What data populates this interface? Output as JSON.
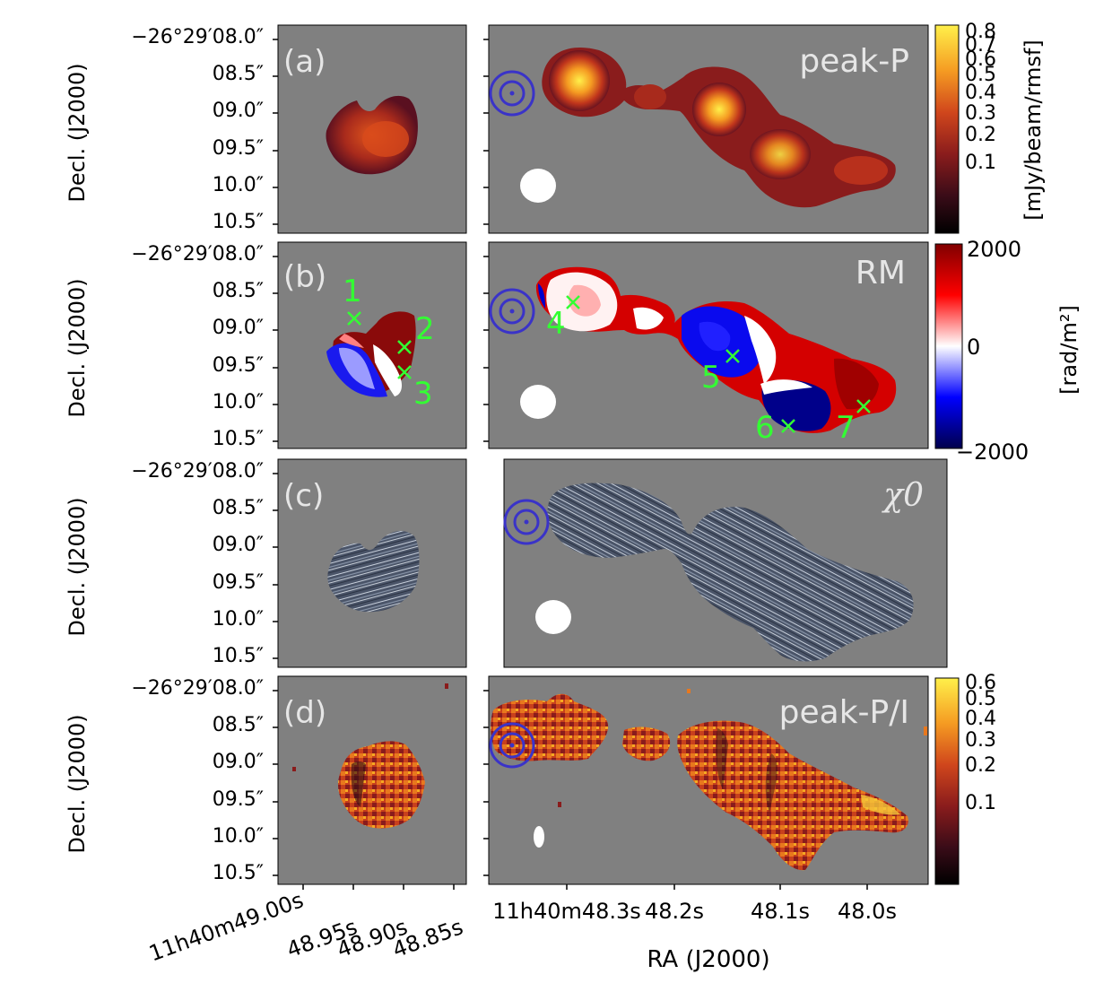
{
  "figure": {
    "colors": {
      "background": "#808080",
      "beam_marker": "#3a33c8",
      "annotation": "#33ff33",
      "beam_ellipse": "#ffffff"
    },
    "y_axis": {
      "label": "Decl. (J2000)",
      "ticks": [
        "−26°29′08.0″",
        "08.5″",
        "09.0″",
        "09.5″",
        "10.0″",
        "10.5″"
      ]
    },
    "x_axis_left": {
      "ticks": [
        "11h40m49.00s",
        "48.95s",
        "48.90s",
        "48.85s"
      ]
    },
    "x_axis_right": {
      "label": "RA (J2000)",
      "ticks": [
        "11h40m48.3s",
        "48.2s",
        "48.1s",
        "48.0s"
      ]
    },
    "rows": [
      {
        "panel_label": "(a)",
        "title": "peak-P",
        "colorbar": {
          "label": "[mJy/beam/rmsf]",
          "ticks": [
            "0.8",
            "0.7",
            "0.6",
            "0.5",
            "0.4",
            "0.3",
            "0.2",
            "0.1"
          ],
          "colormap": "afmhot"
        }
      },
      {
        "panel_label": "(b)",
        "title": "RM",
        "colorbar": {
          "label": "[rad/m²]",
          "ticks": [
            "2000",
            "0",
            "−2000"
          ],
          "colormap": "seismic"
        },
        "markers": [
          "1",
          "2",
          "3",
          "4",
          "5",
          "6",
          "7"
        ]
      },
      {
        "panel_label": "(c)",
        "title": "χ0"
      },
      {
        "panel_label": "(d)",
        "title": "peak-P/I",
        "colorbar": {
          "label": "",
          "ticks": [
            "0.6",
            "0.5",
            "0.4",
            "0.3",
            "0.2",
            "0.1"
          ],
          "colormap": "afmhot"
        }
      }
    ]
  }
}
